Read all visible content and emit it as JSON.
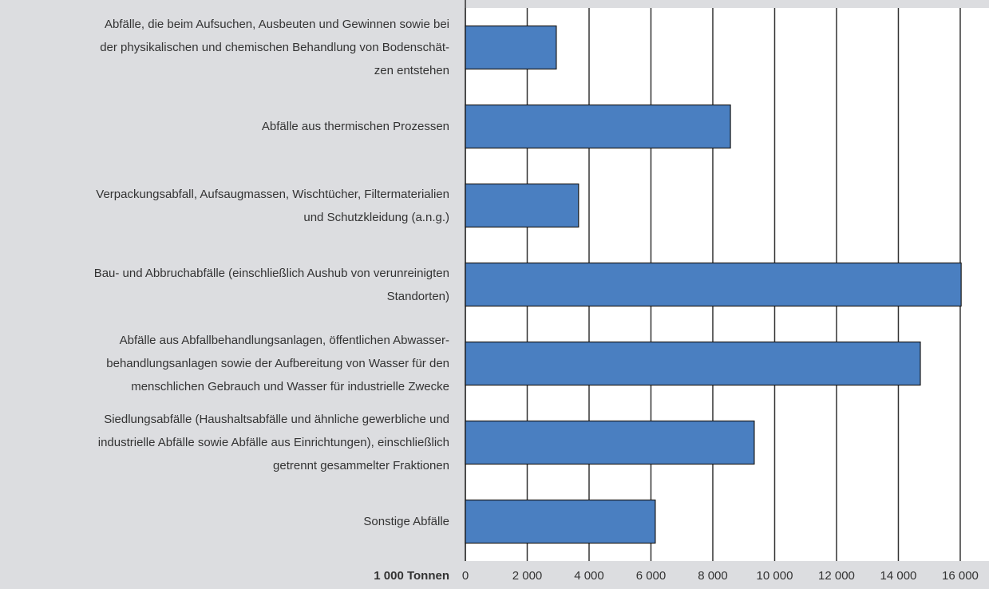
{
  "chart_data": {
    "type": "barh",
    "x_label": "1 000 Tonnen",
    "categories": [
      "Abfälle, die beim Aufsuchen, Ausbeuten und Gewinnen sowie bei\nder physikalischen und chemischen Behandlung von Bodenschät-\nzen entstehen",
      "Abfälle aus thermischen Prozessen",
      "Verpackungsabfall, Aufsaugmassen, Wischtücher, Filtermaterialien\nund Schutzkleidung (a.n.g.)",
      "Bau- und Abbruchabfälle (einschließlich Aushub von verunreinigten\nStandorten)",
      "Abfälle aus Abfallbehandlungsanlagen, öffentlichen Abwasser-\nbehandlungsanlagen sowie der Aufbereitung von Wasser für den\nmenschlichen Gebrauch und Wasser für industrielle Zwecke",
      "Siedlungsabfälle (Haushaltsabfälle und ähnliche gewerbliche und\nindustrielle Abfälle sowie Abfälle aus Einrichtungen), einschließlich\ngetrennt gesammelter Fraktionen",
      "Sonstige Abfälle"
    ],
    "values": [
      2940,
      8570,
      3660,
      16030,
      14710,
      9340,
      6140
    ],
    "color": "#4a7fc1",
    "xlim": [
      0,
      16930
    ],
    "xticks": [
      0,
      {
        "value": 2000,
        "label": "2 000"
      },
      {
        "value": 4000,
        "label": "4 000"
      },
      {
        "value": 6000,
        "label": "6 000"
      },
      {
        "value": 8000,
        "label": "8 000"
      },
      {
        "value": 10000,
        "label": "10 000"
      },
      {
        "value": 12000,
        "label": "12 000"
      },
      {
        "value": 14000,
        "label": "14 000"
      },
      {
        "value": 16000,
        "label": "16 000"
      }
    ],
    "grid": true
  }
}
